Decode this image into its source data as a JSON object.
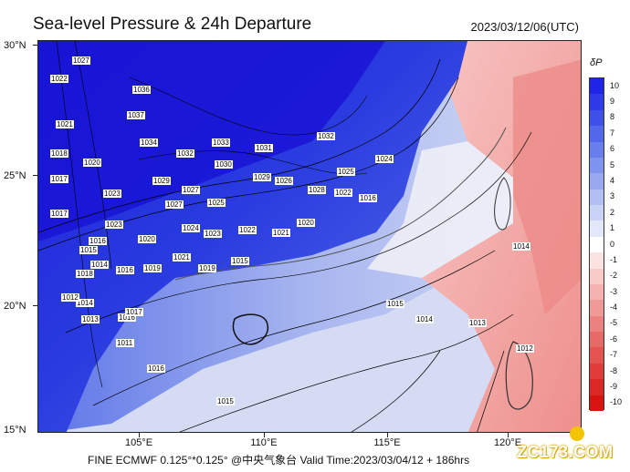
{
  "header": {
    "title": "Sea-level Pressure & 24h Departure",
    "datetime": "2023/03/12/06(UTC)"
  },
  "map": {
    "lat_labels": [
      "30°N",
      "25°N",
      "20°N",
      "15°N"
    ],
    "lon_labels": [
      "105°E",
      "110°E",
      "115°E",
      "120°E"
    ],
    "isobar_labels": [
      "1027",
      "1022",
      "1036",
      "1021",
      "1037",
      "1034",
      "1033",
      "1031",
      "1032",
      "1018",
      "1020",
      "1032",
      "1030",
      "1029",
      "1026",
      "1025",
      "1024",
      "1017",
      "1023",
      "1029",
      "1027",
      "1025",
      "1028",
      "1022",
      "1016",
      "1017",
      "1023",
      "1027",
      "1022",
      "1021",
      "1020",
      "1016",
      "1015",
      "1020",
      "1024",
      "1023",
      "1014",
      "1021",
      "1019",
      "1015",
      "1016",
      "1019",
      "1018",
      "1014",
      "1016",
      "1012",
      "1013",
      "1017",
      "1011",
      "1016",
      "1015",
      "1014",
      "1013",
      "1012",
      "1015",
      "1014"
    ],
    "colors": {
      "ocean_low": "#c8d2ef",
      "deep_blue": "#1f2fd8",
      "red_high": "#f4a7a3"
    }
  },
  "colorbar": {
    "title": "δP",
    "levels": [
      "10",
      "9",
      "8",
      "7",
      "6",
      "5",
      "4",
      "3",
      "2",
      "1",
      "0",
      "-1",
      "-2",
      "-3",
      "-4",
      "-5",
      "-6",
      "-7",
      "-8",
      "-9",
      "-10"
    ],
    "colors": [
      "#1f24e6",
      "#2f3ae8",
      "#3f50e9",
      "#5367ea",
      "#687eec",
      "#7f94ee",
      "#98a9f0",
      "#b1bff3",
      "#c9d3f6",
      "#e2e7fa",
      "#ffffff",
      "#fbe3e2",
      "#f8cbc9",
      "#f4b2b0",
      "#f09a98",
      "#ec8280",
      "#e86a68",
      "#e45350",
      "#e03d3a",
      "#dc2824",
      "#d81410"
    ]
  },
  "footer": {
    "text": "FINE ECMWF 0.125°*0.125°  @中央气象台  Valid Time:2023/03/04/12 + 186hrs"
  },
  "watermark": {
    "text": "ZC173.COM"
  }
}
